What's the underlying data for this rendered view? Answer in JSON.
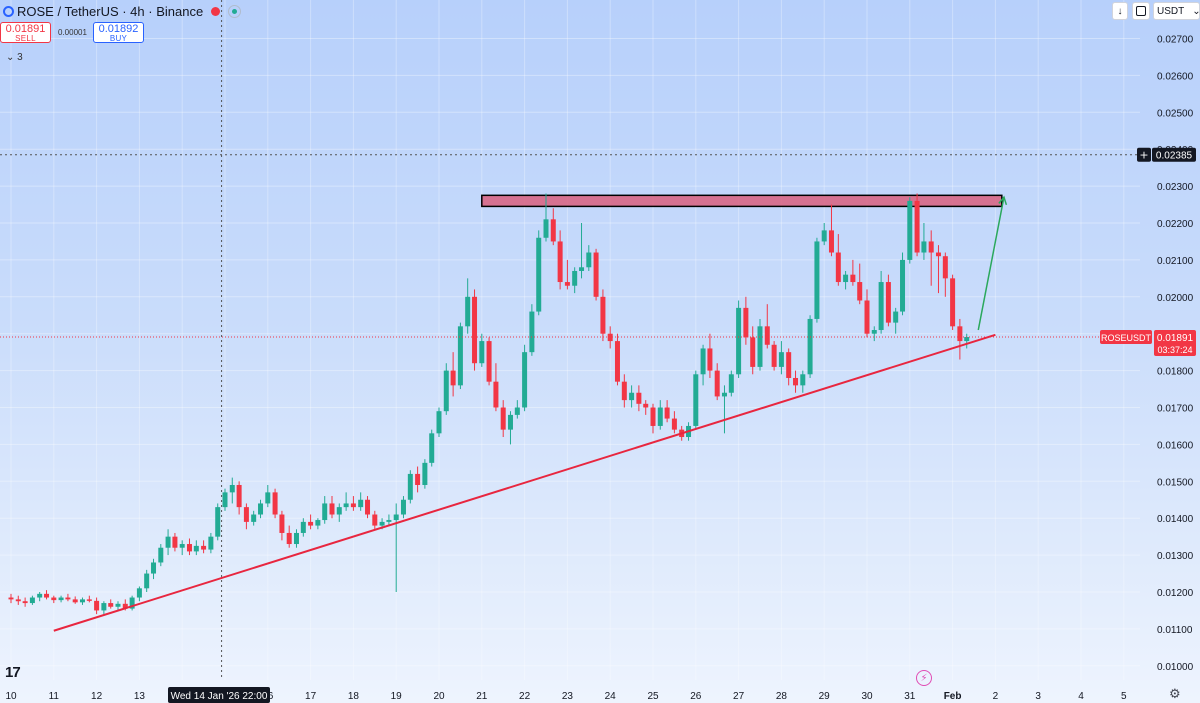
{
  "header": {
    "title": "ROSE / TetherUS · 4h · Binance",
    "sell_price": "0.01891",
    "sell_label": "SELL",
    "buy_price": "0.01892",
    "buy_label": "BUY",
    "spread": "0.00001",
    "indicator_count": "3"
  },
  "toolbar": {
    "currency": "USDT",
    "down_icon": "down-arrow-icon",
    "layout_icon": "square-icon",
    "currency_dropdown_icon": "chevron-down-icon"
  },
  "price_labels": {
    "crosshair_price": "0.02385",
    "symbol_tag": "ROSEUSDT",
    "last_price": "0.01891",
    "countdown": "03:37:24"
  },
  "crosshair_time_label": "Wed 14 Jan '26   22:00",
  "colors": {
    "up": "#22ab94",
    "down": "#f23645",
    "resistance_fill": "#d9607e",
    "trendline": "#e8263f",
    "projection_arrow": "#2aa85c"
  },
  "chart_data": {
    "type": "candlestick",
    "symbol": "ROSEUSDT",
    "interval": "4h",
    "y_axis_ticks": [
      "0.02700",
      "0.02600",
      "0.02500",
      "0.02400",
      "0.02300",
      "0.02200",
      "0.02100",
      "0.02000",
      "0.01900",
      "0.01800",
      "0.01700",
      "0.01600",
      "0.01500",
      "0.01400",
      "0.01300",
      "0.01200",
      "0.01100",
      "0.01000"
    ],
    "ylim": [
      0.0097,
      0.0281
    ],
    "x_axis_ticks": [
      "10",
      "11",
      "12",
      "13",
      "14",
      "15",
      "16",
      "17",
      "18",
      "19",
      "20",
      "21",
      "22",
      "23",
      "24",
      "25",
      "26",
      "27",
      "28",
      "29",
      "30",
      "31",
      "Feb",
      "2",
      "3",
      "4",
      "5"
    ],
    "xlim_days": [
      9.95,
      36.0
    ],
    "candles": [
      [
        10.0,
        0.01185,
        0.01195,
        0.0117,
        0.0118
      ],
      [
        10.17,
        0.0118,
        0.0119,
        0.01165,
        0.01175
      ],
      [
        10.33,
        0.01175,
        0.01185,
        0.0116,
        0.0117
      ],
      [
        10.5,
        0.0117,
        0.0119,
        0.01165,
        0.01185
      ],
      [
        10.67,
        0.01185,
        0.012,
        0.01175,
        0.01195
      ],
      [
        10.83,
        0.01195,
        0.01205,
        0.0118,
        0.01185
      ],
      [
        11.0,
        0.01185,
        0.0119,
        0.0117,
        0.01178
      ],
      [
        11.17,
        0.01178,
        0.0119,
        0.01172,
        0.01185
      ],
      [
        11.33,
        0.01185,
        0.01195,
        0.01175,
        0.0118
      ],
      [
        11.5,
        0.0118,
        0.01188,
        0.01168,
        0.01172
      ],
      [
        11.67,
        0.01172,
        0.01185,
        0.01165,
        0.0118
      ],
      [
        11.83,
        0.0118,
        0.0119,
        0.01172,
        0.01176
      ],
      [
        12.0,
        0.01176,
        0.01185,
        0.0114,
        0.0115
      ],
      [
        12.17,
        0.0115,
        0.01175,
        0.0114,
        0.0117
      ],
      [
        12.33,
        0.0117,
        0.0118,
        0.01155,
        0.0116
      ],
      [
        12.5,
        0.0116,
        0.01175,
        0.0115,
        0.01168
      ],
      [
        12.67,
        0.01168,
        0.0118,
        0.0115,
        0.01155
      ],
      [
        12.83,
        0.01155,
        0.0119,
        0.0115,
        0.01185
      ],
      [
        13.0,
        0.01185,
        0.01215,
        0.01175,
        0.0121
      ],
      [
        13.17,
        0.0121,
        0.0126,
        0.012,
        0.0125
      ],
      [
        13.33,
        0.0125,
        0.0129,
        0.01235,
        0.0128
      ],
      [
        13.5,
        0.0128,
        0.0133,
        0.0127,
        0.0132
      ],
      [
        13.67,
        0.0132,
        0.0137,
        0.013,
        0.0135
      ],
      [
        13.83,
        0.0135,
        0.0136,
        0.0131,
        0.0132
      ],
      [
        14.0,
        0.0132,
        0.0134,
        0.013,
        0.0133
      ],
      [
        14.17,
        0.0133,
        0.01345,
        0.013,
        0.0131
      ],
      [
        14.33,
        0.0131,
        0.0134,
        0.013,
        0.01325
      ],
      [
        14.5,
        0.01325,
        0.0134,
        0.01305,
        0.01315
      ],
      [
        14.67,
        0.01315,
        0.0136,
        0.01305,
        0.0135
      ],
      [
        14.83,
        0.0135,
        0.0144,
        0.0134,
        0.0143
      ],
      [
        15.0,
        0.0143,
        0.0148,
        0.0142,
        0.0147
      ],
      [
        15.17,
        0.0147,
        0.0151,
        0.0144,
        0.0149
      ],
      [
        15.33,
        0.0149,
        0.015,
        0.0141,
        0.0143
      ],
      [
        15.5,
        0.0143,
        0.0144,
        0.0137,
        0.0139
      ],
      [
        15.67,
        0.0139,
        0.0142,
        0.0138,
        0.0141
      ],
      [
        15.83,
        0.0141,
        0.0145,
        0.014,
        0.0144
      ],
      [
        16.0,
        0.0144,
        0.0149,
        0.0143,
        0.0147
      ],
      [
        16.17,
        0.0147,
        0.0148,
        0.014,
        0.0141
      ],
      [
        16.33,
        0.0141,
        0.0142,
        0.0134,
        0.0136
      ],
      [
        16.5,
        0.0136,
        0.0138,
        0.0132,
        0.0133
      ],
      [
        16.67,
        0.0133,
        0.0137,
        0.0132,
        0.0136
      ],
      [
        16.83,
        0.0136,
        0.014,
        0.0135,
        0.0139
      ],
      [
        17.0,
        0.0139,
        0.0141,
        0.0137,
        0.0138
      ],
      [
        17.17,
        0.0138,
        0.014,
        0.0137,
        0.01395
      ],
      [
        17.33,
        0.01395,
        0.0146,
        0.01385,
        0.0144
      ],
      [
        17.5,
        0.0144,
        0.0146,
        0.014,
        0.0141
      ],
      [
        17.67,
        0.0141,
        0.0144,
        0.0139,
        0.0143
      ],
      [
        17.83,
        0.0143,
        0.0147,
        0.0142,
        0.0144
      ],
      [
        18.0,
        0.0144,
        0.0146,
        0.0142,
        0.0143
      ],
      [
        18.17,
        0.0143,
        0.0147,
        0.0142,
        0.0145
      ],
      [
        18.33,
        0.0145,
        0.0146,
        0.014,
        0.0141
      ],
      [
        18.5,
        0.0141,
        0.0142,
        0.0137,
        0.0138
      ],
      [
        18.67,
        0.0138,
        0.014,
        0.0137,
        0.0139
      ],
      [
        18.83,
        0.0139,
        0.0141,
        0.0138,
        0.01395
      ],
      [
        19.0,
        0.01395,
        0.0144,
        0.012,
        0.0141
      ],
      [
        19.17,
        0.0141,
        0.0146,
        0.014,
        0.0145
      ],
      [
        19.33,
        0.0145,
        0.0153,
        0.0144,
        0.0152
      ],
      [
        19.5,
        0.0152,
        0.0154,
        0.0147,
        0.0149
      ],
      [
        19.67,
        0.0149,
        0.0156,
        0.0148,
        0.0155
      ],
      [
        19.83,
        0.0155,
        0.0164,
        0.0154,
        0.0163
      ],
      [
        20.0,
        0.0163,
        0.017,
        0.0162,
        0.0169
      ],
      [
        20.17,
        0.0169,
        0.0182,
        0.0168,
        0.018
      ],
      [
        20.33,
        0.018,
        0.0185,
        0.0173,
        0.0176
      ],
      [
        20.5,
        0.0176,
        0.0193,
        0.0175,
        0.0192
      ],
      [
        20.67,
        0.0192,
        0.0205,
        0.019,
        0.02
      ],
      [
        20.83,
        0.02,
        0.0202,
        0.018,
        0.0182
      ],
      [
        21.0,
        0.0182,
        0.019,
        0.0181,
        0.0188
      ],
      [
        21.17,
        0.0188,
        0.0189,
        0.0176,
        0.0177
      ],
      [
        21.33,
        0.0177,
        0.0182,
        0.0169,
        0.017
      ],
      [
        21.5,
        0.017,
        0.0172,
        0.0162,
        0.0164
      ],
      [
        21.67,
        0.0164,
        0.0169,
        0.016,
        0.0168
      ],
      [
        21.83,
        0.0168,
        0.0172,
        0.0167,
        0.017
      ],
      [
        22.0,
        0.017,
        0.0187,
        0.0169,
        0.0185
      ],
      [
        22.17,
        0.0185,
        0.0198,
        0.0184,
        0.0196
      ],
      [
        22.33,
        0.0196,
        0.0218,
        0.0195,
        0.0216
      ],
      [
        22.5,
        0.0216,
        0.0228,
        0.0215,
        0.0221
      ],
      [
        22.67,
        0.0221,
        0.0224,
        0.0214,
        0.0215
      ],
      [
        22.83,
        0.0215,
        0.0218,
        0.0202,
        0.0204
      ],
      [
        23.0,
        0.0204,
        0.021,
        0.0202,
        0.0203
      ],
      [
        23.17,
        0.0203,
        0.0208,
        0.0201,
        0.0207
      ],
      [
        23.33,
        0.0207,
        0.022,
        0.0205,
        0.0208
      ],
      [
        23.5,
        0.0208,
        0.0214,
        0.0207,
        0.0212
      ],
      [
        23.67,
        0.0212,
        0.0213,
        0.0199,
        0.02
      ],
      [
        23.83,
        0.02,
        0.0202,
        0.0188,
        0.019
      ],
      [
        24.0,
        0.019,
        0.0192,
        0.0186,
        0.0188
      ],
      [
        24.17,
        0.0188,
        0.019,
        0.0176,
        0.0177
      ],
      [
        24.33,
        0.0177,
        0.0179,
        0.017,
        0.0172
      ],
      [
        24.5,
        0.0172,
        0.0176,
        0.017,
        0.0174
      ],
      [
        24.67,
        0.0174,
        0.0176,
        0.0169,
        0.0171
      ],
      [
        24.83,
        0.0171,
        0.0172,
        0.0168,
        0.017
      ],
      [
        25.0,
        0.017,
        0.0171,
        0.0163,
        0.0165
      ],
      [
        25.17,
        0.0165,
        0.0172,
        0.0164,
        0.017
      ],
      [
        25.33,
        0.017,
        0.0172,
        0.0166,
        0.0167
      ],
      [
        25.5,
        0.0167,
        0.0169,
        0.0163,
        0.0164
      ],
      [
        25.67,
        0.0164,
        0.0165,
        0.0161,
        0.0162
      ],
      [
        25.83,
        0.0162,
        0.0166,
        0.0161,
        0.0165
      ],
      [
        26.0,
        0.0165,
        0.018,
        0.0164,
        0.0179
      ],
      [
        26.17,
        0.0179,
        0.0187,
        0.0176,
        0.0186
      ],
      [
        26.33,
        0.0186,
        0.019,
        0.0178,
        0.018
      ],
      [
        26.5,
        0.018,
        0.0182,
        0.0172,
        0.0173
      ],
      [
        26.67,
        0.0173,
        0.0176,
        0.0163,
        0.0174
      ],
      [
        26.83,
        0.0174,
        0.018,
        0.0173,
        0.0179
      ],
      [
        27.0,
        0.0179,
        0.0199,
        0.0178,
        0.0197
      ],
      [
        27.17,
        0.0197,
        0.02,
        0.0187,
        0.0189
      ],
      [
        27.33,
        0.0189,
        0.0192,
        0.0179,
        0.0181
      ],
      [
        27.5,
        0.0181,
        0.0194,
        0.018,
        0.0192
      ],
      [
        27.67,
        0.0192,
        0.0198,
        0.0186,
        0.0187
      ],
      [
        27.83,
        0.0187,
        0.0188,
        0.018,
        0.0181
      ],
      [
        28.0,
        0.0181,
        0.0188,
        0.0179,
        0.0185
      ],
      [
        28.17,
        0.0185,
        0.0186,
        0.0176,
        0.0178
      ],
      [
        28.33,
        0.0178,
        0.018,
        0.0174,
        0.0176
      ],
      [
        28.5,
        0.0176,
        0.018,
        0.0174,
        0.0179
      ],
      [
        28.67,
        0.0179,
        0.0195,
        0.0178,
        0.0194
      ],
      [
        28.83,
        0.0194,
        0.0216,
        0.0193,
        0.0215
      ],
      [
        29.0,
        0.0215,
        0.022,
        0.0214,
        0.0218
      ],
      [
        29.17,
        0.0218,
        0.0225,
        0.0211,
        0.0212
      ],
      [
        29.33,
        0.0212,
        0.0217,
        0.0203,
        0.0204
      ],
      [
        29.5,
        0.0204,
        0.0207,
        0.0202,
        0.0206
      ],
      [
        29.67,
        0.0206,
        0.021,
        0.0203,
        0.0204
      ],
      [
        29.83,
        0.0204,
        0.0209,
        0.0198,
        0.0199
      ],
      [
        30.0,
        0.0199,
        0.0202,
        0.0189,
        0.019
      ],
      [
        30.17,
        0.019,
        0.0192,
        0.0188,
        0.0191
      ],
      [
        30.33,
        0.0191,
        0.0207,
        0.019,
        0.0204
      ],
      [
        30.5,
        0.0204,
        0.0206,
        0.0192,
        0.0193
      ],
      [
        30.67,
        0.0193,
        0.0197,
        0.019,
        0.0196
      ],
      [
        30.83,
        0.0196,
        0.0212,
        0.0195,
        0.021
      ],
      [
        31.0,
        0.021,
        0.0227,
        0.0209,
        0.0226
      ],
      [
        31.17,
        0.0226,
        0.0228,
        0.0211,
        0.0212
      ],
      [
        31.33,
        0.0212,
        0.022,
        0.021,
        0.0215
      ],
      [
        31.5,
        0.0215,
        0.0218,
        0.0203,
        0.0212
      ],
      [
        31.67,
        0.0212,
        0.0214,
        0.0201,
        0.0211
      ],
      [
        31.83,
        0.0211,
        0.0212,
        0.02,
        0.0205
      ],
      [
        32.0,
        0.0205,
        0.0206,
        0.0191,
        0.0192
      ],
      [
        32.17,
        0.0192,
        0.0194,
        0.0183,
        0.0188
      ],
      [
        32.33,
        0.0188,
        0.019,
        0.0186,
        0.01891
      ]
    ],
    "resistance_zone": {
      "x_start": 21.0,
      "x_end": 33.15,
      "y_low": 0.02245,
      "y_high": 0.02275
    },
    "trendline": {
      "x1": 11.0,
      "y1": 0.01095,
      "x2": 33.0,
      "y2": 0.01897
    },
    "projection_arrow": {
      "x1": 32.6,
      "y1": 0.0191,
      "x2": 33.2,
      "y2": 0.0227
    },
    "crosshair": {
      "x": 14.92,
      "y": 0.02385
    },
    "last_price": 0.01891
  }
}
